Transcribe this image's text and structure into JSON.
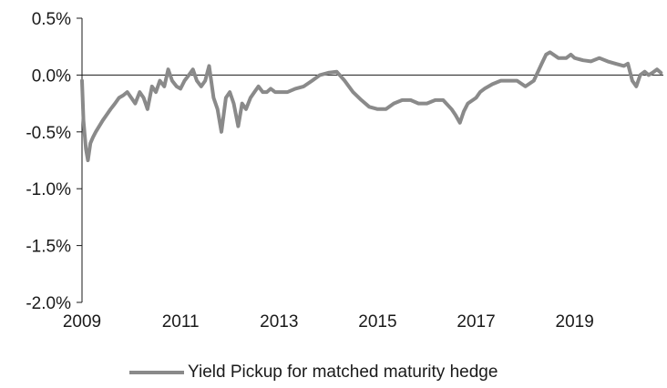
{
  "chart_data": {
    "type": "line",
    "title": "",
    "xlabel": "",
    "ylabel": "",
    "x_ticks": [
      "2009",
      "2011",
      "2013",
      "2015",
      "2017",
      "2019"
    ],
    "y_ticks": [
      "0.5%",
      "0.0%",
      "-0.5%",
      "-1.0%",
      "-1.5%",
      "-2.0%"
    ],
    "xlim": [
      2009,
      2020.8
    ],
    "ylim": [
      -2.0,
      0.5
    ],
    "y_unit": "%",
    "grid": false,
    "legend_position": "bottom",
    "series": [
      {
        "name": "Yield Pickup for matched maturity hedge",
        "color": "#8a8a8a",
        "x": [
          2009.0,
          2009.03,
          2009.08,
          2009.12,
          2009.17,
          2009.22,
          2009.28,
          2009.35,
          2009.42,
          2009.5,
          2009.58,
          2009.67,
          2009.75,
          2009.83,
          2009.92,
          2010.0,
          2010.08,
          2010.17,
          2010.25,
          2010.33,
          2010.42,
          2010.5,
          2010.58,
          2010.67,
          2010.75,
          2010.83,
          2010.92,
          2011.0,
          2011.08,
          2011.17,
          2011.25,
          2011.33,
          2011.42,
          2011.5,
          2011.58,
          2011.67,
          2011.75,
          2011.83,
          2011.92,
          2012.0,
          2012.08,
          2012.17,
          2012.25,
          2012.33,
          2012.42,
          2012.5,
          2012.58,
          2012.67,
          2012.75,
          2012.83,
          2012.92,
          2013.0,
          2013.17,
          2013.33,
          2013.5,
          2013.67,
          2013.83,
          2014.0,
          2014.17,
          2014.33,
          2014.5,
          2014.67,
          2014.83,
          2015.0,
          2015.17,
          2015.33,
          2015.5,
          2015.67,
          2015.83,
          2016.0,
          2016.17,
          2016.33,
          2016.5,
          2016.58,
          2016.67,
          2016.75,
          2016.83,
          2017.0,
          2017.08,
          2017.17,
          2017.25,
          2017.33,
          2017.5,
          2017.67,
          2017.83,
          2018.0,
          2018.17,
          2018.33,
          2018.42,
          2018.5,
          2018.67,
          2018.83,
          2018.92,
          2019.0,
          2019.17,
          2019.33,
          2019.5,
          2019.67,
          2019.83,
          2020.0,
          2020.08,
          2020.17,
          2020.25,
          2020.33,
          2020.42,
          2020.5,
          2020.58,
          2020.67,
          2020.75
        ],
        "values": [
          -0.05,
          -0.4,
          -0.65,
          -0.75,
          -0.6,
          -0.55,
          -0.5,
          -0.45,
          -0.4,
          -0.35,
          -0.3,
          -0.25,
          -0.2,
          -0.18,
          -0.15,
          -0.2,
          -0.25,
          -0.15,
          -0.2,
          -0.3,
          -0.1,
          -0.15,
          -0.05,
          -0.1,
          0.05,
          -0.05,
          -0.1,
          -0.12,
          -0.05,
          0.0,
          0.05,
          -0.05,
          -0.1,
          -0.05,
          0.08,
          -0.2,
          -0.3,
          -0.5,
          -0.2,
          -0.15,
          -0.25,
          -0.45,
          -0.25,
          -0.3,
          -0.2,
          -0.15,
          -0.1,
          -0.15,
          -0.15,
          -0.12,
          -0.15,
          -0.15,
          -0.15,
          -0.12,
          -0.1,
          -0.05,
          0.0,
          0.02,
          0.03,
          -0.05,
          -0.15,
          -0.22,
          -0.28,
          -0.3,
          -0.3,
          -0.25,
          -0.22,
          -0.22,
          -0.25,
          -0.25,
          -0.22,
          -0.22,
          -0.3,
          -0.35,
          -0.42,
          -0.32,
          -0.25,
          -0.2,
          -0.15,
          -0.12,
          -0.1,
          -0.08,
          -0.05,
          -0.05,
          -0.05,
          -0.1,
          -0.05,
          0.1,
          0.18,
          0.2,
          0.15,
          0.15,
          0.18,
          0.15,
          0.13,
          0.12,
          0.15,
          0.12,
          0.1,
          0.08,
          0.1,
          -0.05,
          -0.1,
          0.0,
          0.03,
          0.0,
          0.02,
          0.05,
          0.02
        ]
      }
    ]
  }
}
